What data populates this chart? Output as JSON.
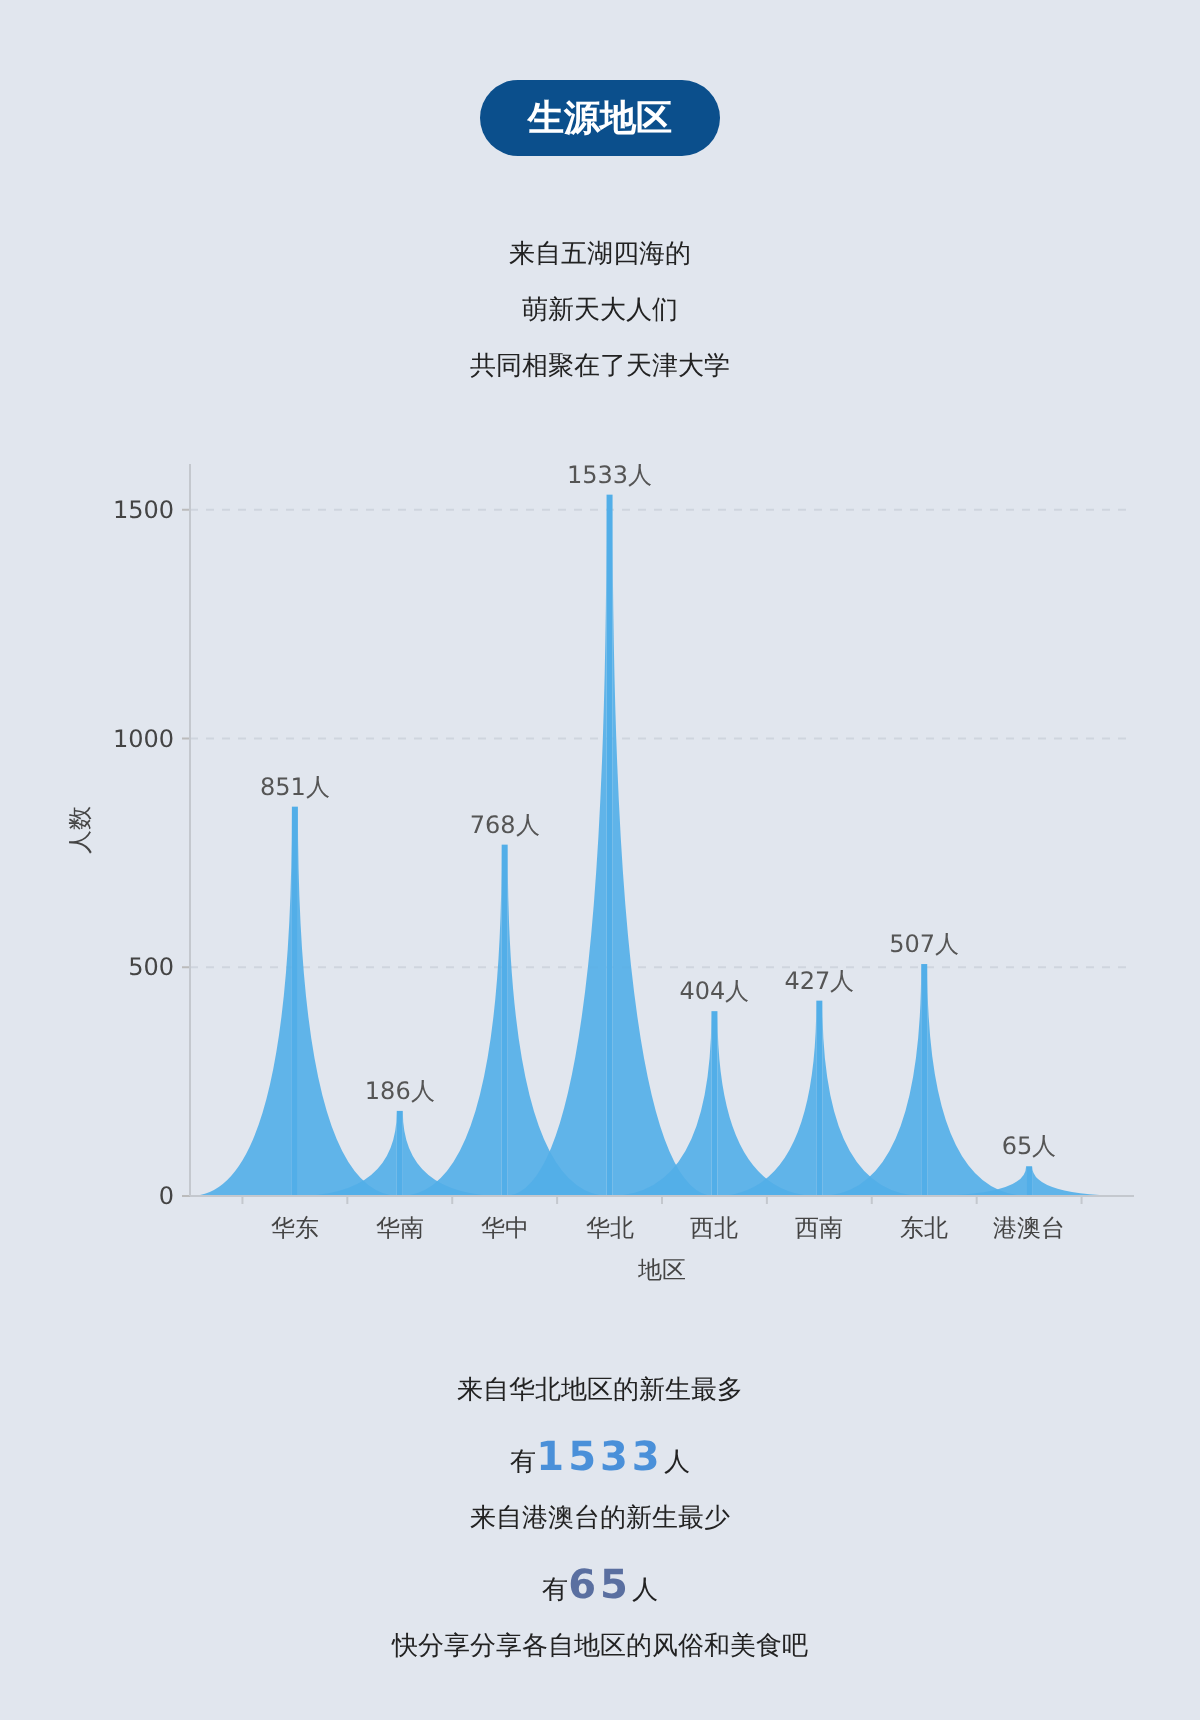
{
  "chart_data": {
    "type": "bar",
    "title": "生源地区",
    "subtitle": "来自五湖四海的萌新天大人们共同相聚在了天津大学",
    "xlabel": "地区",
    "ylabel": "人数",
    "categories": [
      "华东",
      "华南",
      "华中",
      "华北",
      "西北",
      "西南",
      "东北",
      "港澳台"
    ],
    "values": [
      851,
      186,
      768,
      1533,
      404,
      427,
      507,
      65
    ],
    "value_labels": [
      "851人",
      "186人",
      "768人",
      "1533人",
      "404人",
      "427人",
      "507人",
      "65人"
    ],
    "color": "#52aee8",
    "ylim": [
      0,
      1600
    ],
    "yticks": [
      0,
      500,
      1000,
      1500
    ],
    "grid": "y",
    "annotations": [
      "来自华北地区的新生最多",
      "有**1533**人",
      "来自港澳台的新生最少",
      "有**65**人",
      "快分享分享各自地区的风俗和美食吧"
    ]
  }
}
